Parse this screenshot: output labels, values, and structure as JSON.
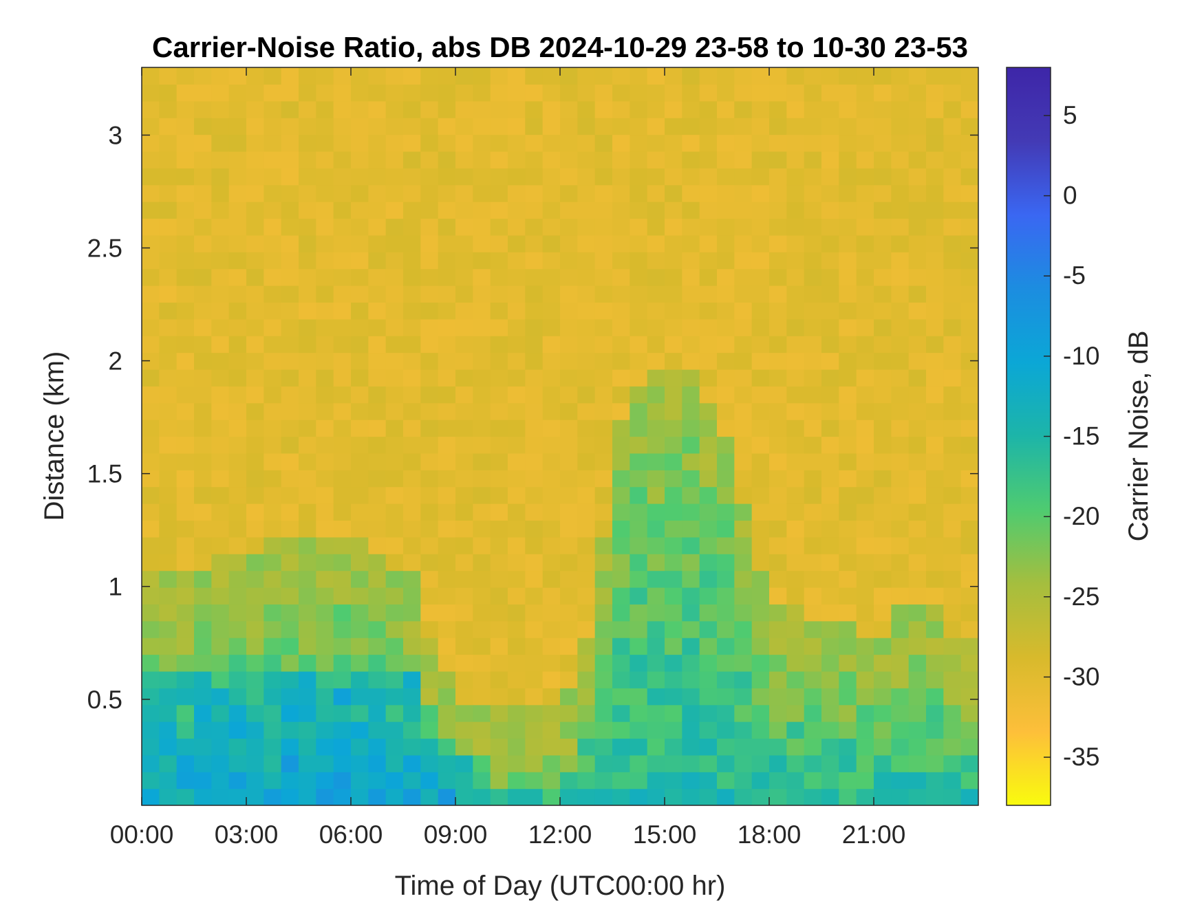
{
  "chart_data": {
    "type": "heatmap",
    "title": "Carrier-Noise Ratio, abs DB 2024-10-29 23-58 to 10-30 23-53",
    "xlabel": "Time of Day (UTC00:00 hr)",
    "ylabel": "Distance (km)",
    "xlim": [
      0,
      24
    ],
    "ylim": [
      0.03,
      3.3
    ],
    "x_ticks": [
      0,
      3,
      6,
      9,
      12,
      15,
      18,
      21
    ],
    "x_tick_labels": [
      "00:00",
      "03:00",
      "06:00",
      "09:00",
      "12:00",
      "15:00",
      "18:00",
      "21:00"
    ],
    "y_ticks": [
      0.5,
      1,
      1.5,
      2,
      2.5,
      3
    ],
    "y_tick_labels": [
      "0.5",
      "1",
      "1.5",
      "2",
      "2.5",
      "3"
    ],
    "colorbar": {
      "label": "Carrier Noise, dB",
      "range": [
        -38,
        8
      ],
      "ticks": [
        5,
        0,
        -5,
        -10,
        -15,
        -20,
        -25,
        -30,
        -35
      ],
      "tick_labels": [
        "5",
        "0",
        "-5",
        "-10",
        "-15",
        "-20",
        "-25",
        "-30",
        "-35"
      ],
      "colormap": "parula",
      "colors": [
        "#f9fb0e",
        "#fdbf3a",
        "#d8ba2c",
        "#a5be3e",
        "#4fcb70",
        "#1db5a8",
        "#0ba7d6",
        "#1c8de0",
        "#3a67f2",
        "#433ab5",
        "#3e26a8"
      ]
    },
    "time_bins_hours": [
      0,
      0.5,
      1,
      1.5,
      2,
      2.5,
      3,
      3.5,
      4,
      4.5,
      5,
      5.5,
      6,
      6.5,
      7,
      7.5,
      8,
      8.5,
      9,
      9.5,
      10,
      10.5,
      11,
      11.5,
      12,
      12.5,
      13,
      13.5,
      14,
      14.5,
      15,
      15.5,
      16,
      16.5,
      17,
      17.5,
      18,
      18.5,
      19,
      19.5,
      20,
      20.5,
      21,
      21.5,
      22,
      22.5,
      23,
      23.5
    ],
    "boundary_layer_top_km": [
      0.85,
      0.8,
      0.8,
      0.85,
      0.9,
      0.9,
      0.9,
      0.95,
      0.95,
      1.0,
      1.0,
      1.0,
      0.95,
      0.9,
      0.85,
      0.8,
      0.5,
      0.35,
      0.25,
      0.25,
      0.2,
      0.2,
      0.2,
      0.22,
      0.3,
      0.5,
      1.0,
      1.5,
      1.65,
      1.7,
      1.7,
      1.68,
      1.6,
      1.4,
      1.1,
      0.8,
      0.7,
      0.65,
      0.62,
      0.6,
      0.6,
      0.55,
      0.55,
      0.65,
      0.7,
      0.65,
      0.55,
      0.5
    ],
    "background_cnr_db": -30,
    "boundary_layer_cnr_db": -15
  }
}
